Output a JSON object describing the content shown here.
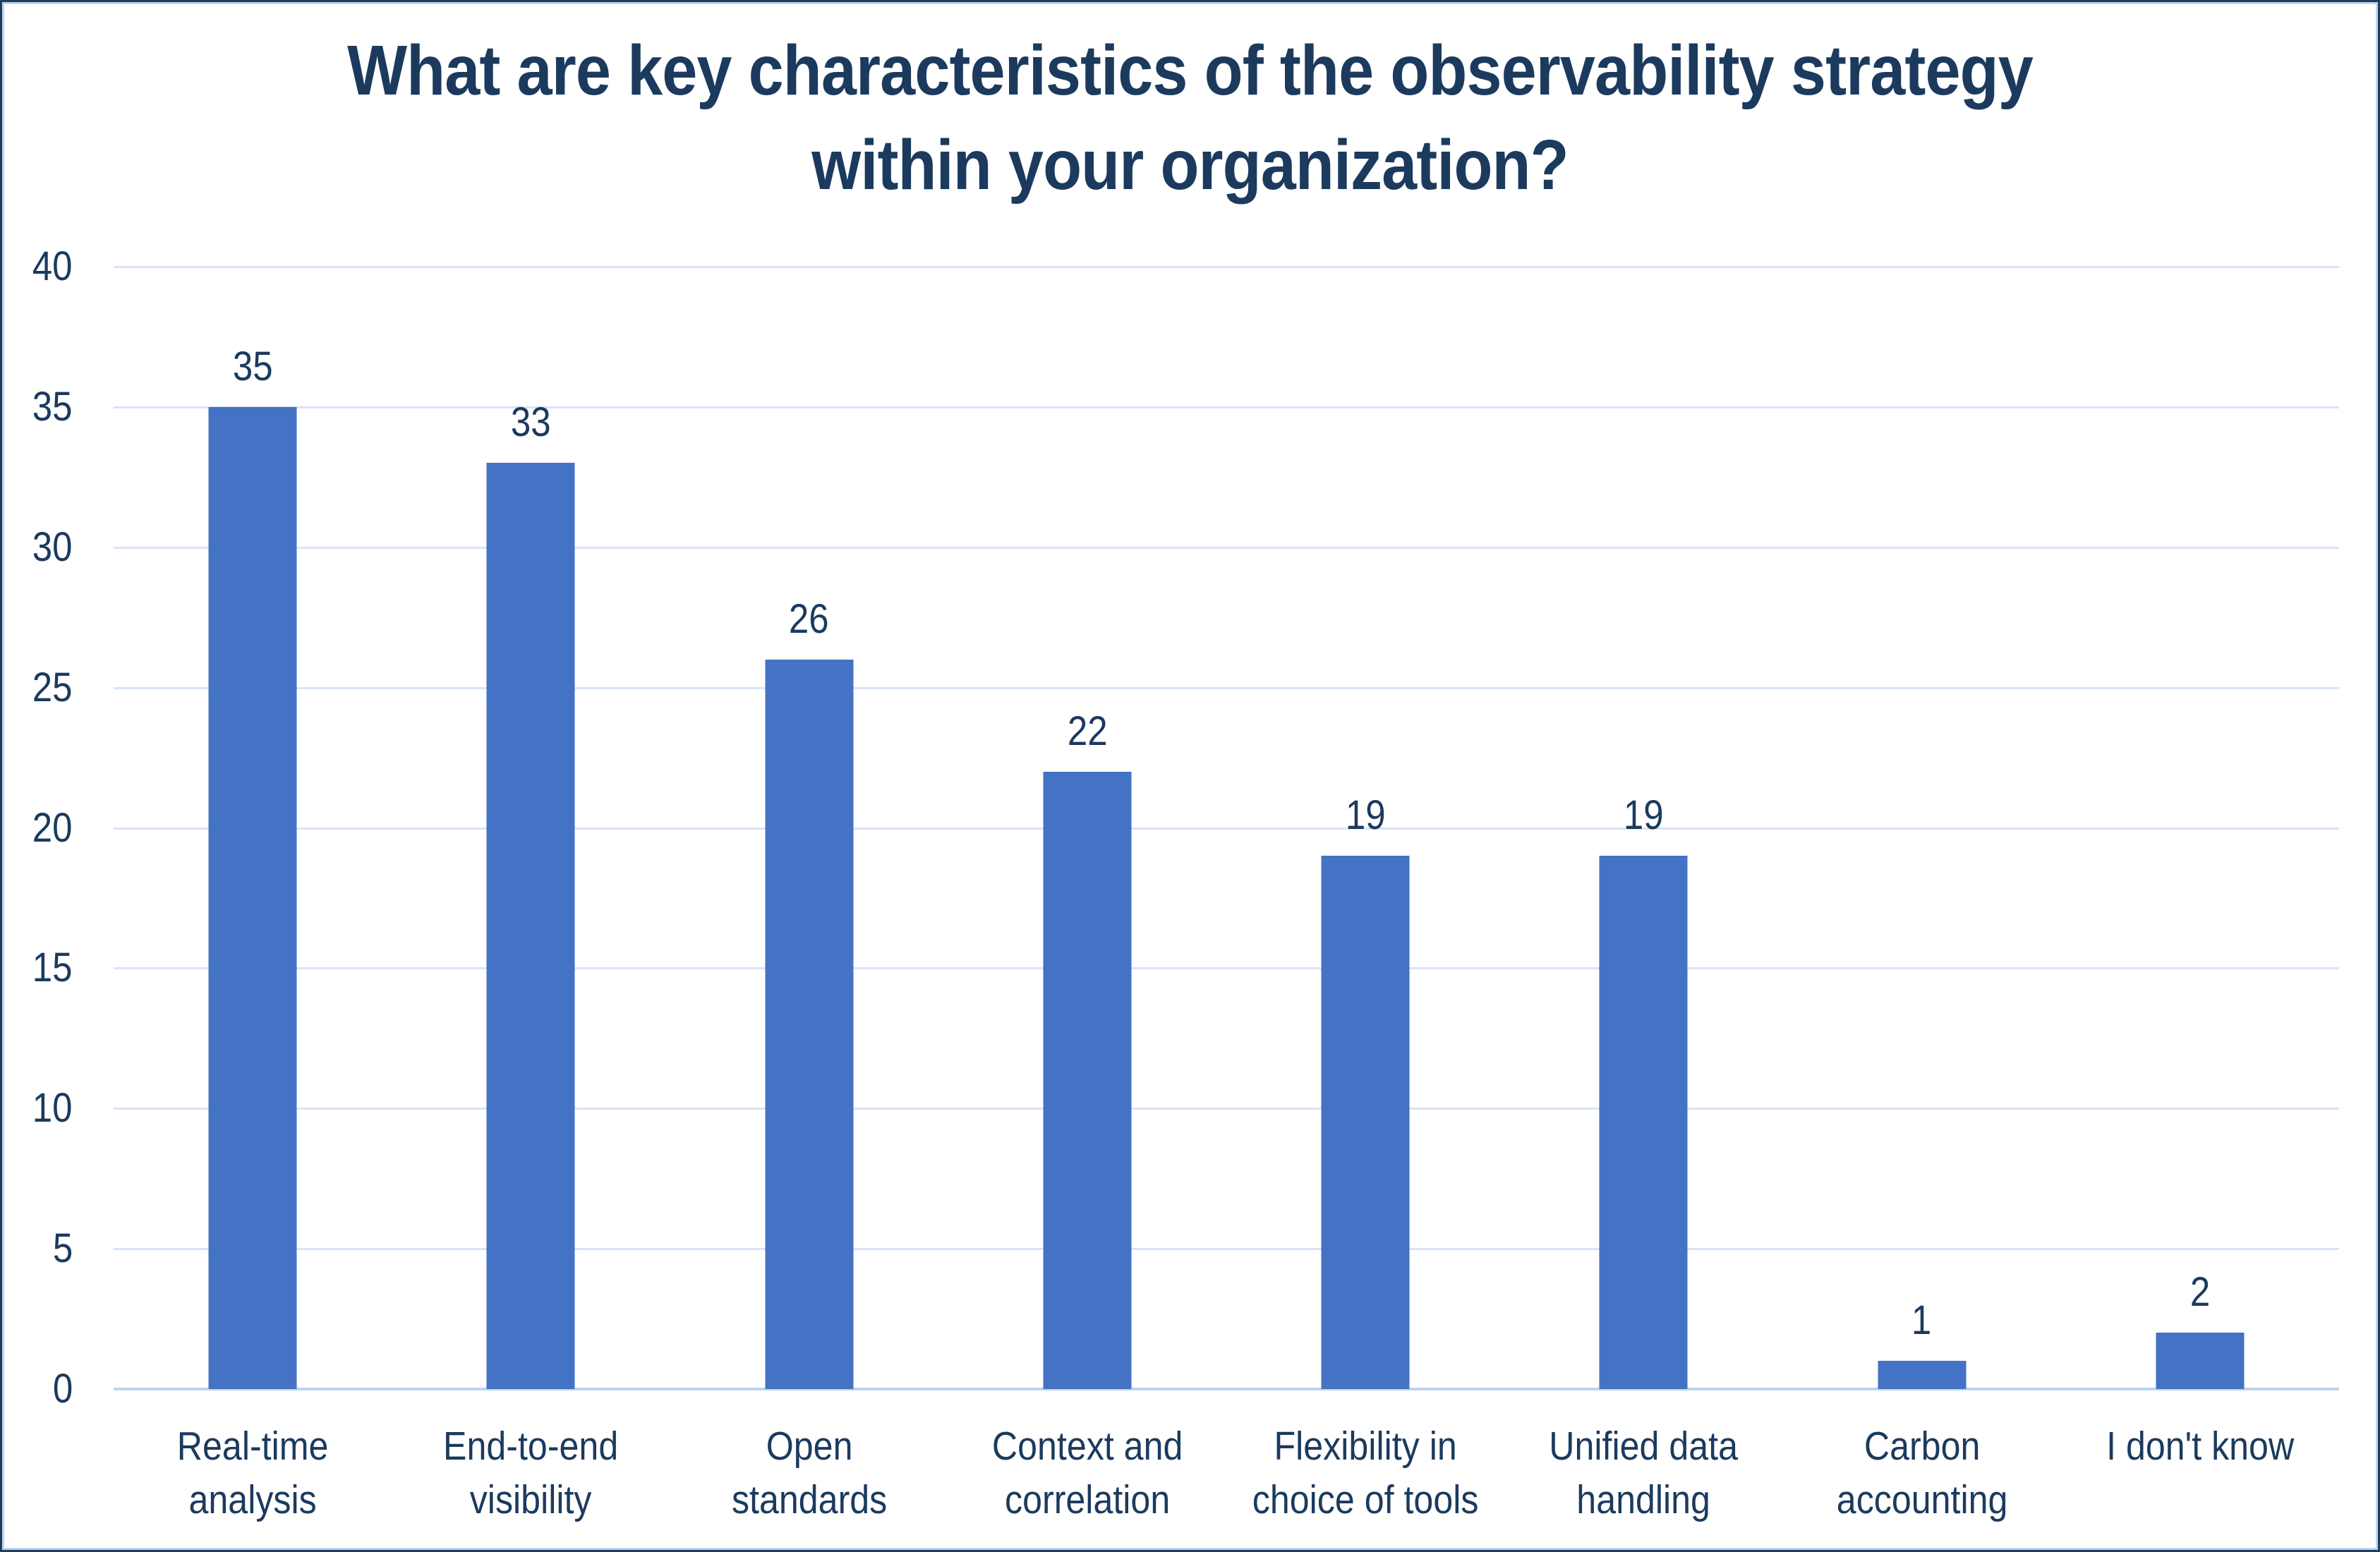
{
  "window": {
    "background": "#FFFFFF",
    "border_outer_color": "#1F3C61",
    "border_inner_color": "#BDD7EE"
  },
  "chart_data": {
    "type": "bar",
    "title": "What are key characteristics of the observability strategy within your organization?",
    "title_lines": [
      "What are key characteristics of the observability strategy",
      "within your organization?"
    ],
    "categories": [
      "Real-time analysis",
      "End-to-end visibility",
      "Open standards",
      "Context and correlation",
      "Flexibility in choice of tools",
      "Unified data handling",
      "Carbon accounting",
      "I don't know"
    ],
    "category_label_lines": [
      [
        "Real-time",
        "analysis"
      ],
      [
        "End-to-end",
        "visibility"
      ],
      [
        "Open",
        "standards"
      ],
      [
        "Context and",
        "correlation"
      ],
      [
        "Flexibility in",
        "choice of tools"
      ],
      [
        "Unified data",
        "handling"
      ],
      [
        "Carbon",
        "accounting"
      ],
      [
        "I don't know"
      ]
    ],
    "values": [
      35,
      33,
      26,
      22,
      19,
      19,
      1,
      2
    ],
    "data_labels_shown": true,
    "xlabel": "",
    "ylabel": "",
    "ylim": [
      0,
      40
    ],
    "yticks": [
      0,
      5,
      10,
      15,
      20,
      25,
      30,
      35,
      40
    ],
    "grid": true,
    "legend": "none",
    "bar_color": "#4472C4",
    "gridline_color": "#D9E4F6",
    "axis_line_color": "#BDD4EE",
    "text_color": "#1B3A5E"
  }
}
